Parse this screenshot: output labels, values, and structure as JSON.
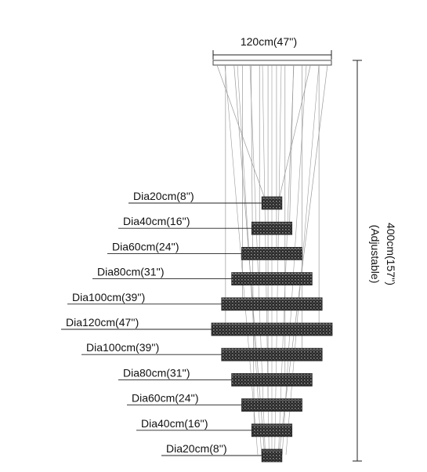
{
  "dimensions": {
    "top_width": "120cm(47'')",
    "height_line1": "400cm(157'')",
    "height_line2": "(Adjustable)"
  },
  "tiers": [
    {
      "label": "Dia20cm(8'')",
      "diameter_cm": 20
    },
    {
      "label": "Dia40cm(16'')",
      "diameter_cm": 40
    },
    {
      "label": "Dia60cm(24'')",
      "diameter_cm": 60
    },
    {
      "label": "Dia80cm(31'')",
      "diameter_cm": 80
    },
    {
      "label": "Dia100cm(39'')",
      "diameter_cm": 100
    },
    {
      "label": "Dia120cm(47'')",
      "diameter_cm": 120
    },
    {
      "label": "Dia100cm(39'')",
      "diameter_cm": 100
    },
    {
      "label": "Dia80cm(31'')",
      "diameter_cm": 80
    },
    {
      "label": "Dia60cm(24'')",
      "diameter_cm": 60
    },
    {
      "label": "Dia40cm(16'')",
      "diameter_cm": 40
    },
    {
      "label": "Dia20cm(8'')",
      "diameter_cm": 20
    }
  ],
  "colors": {
    "line": "#222222",
    "crystal": "#2a2a2a",
    "crystal_highlight": "#7a7a7a",
    "wire": "#9a9a9a"
  }
}
